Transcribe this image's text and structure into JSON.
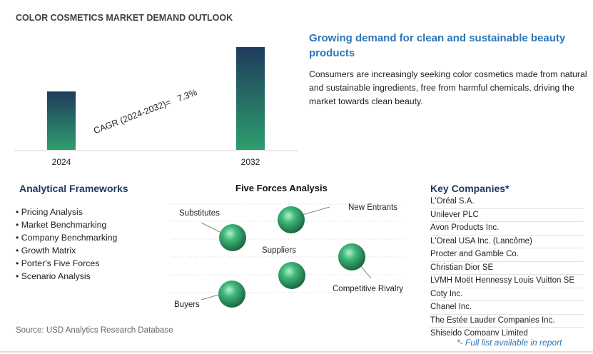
{
  "title": "COLOR COSMETICS MARKET DEMAND OUTLOOK",
  "chart_data": {
    "type": "bar",
    "categories": [
      "2024",
      "2032"
    ],
    "values": [
      100,
      176
    ],
    "annotation": "CAGR (2024-2032)=   7.3%"
  },
  "highlight": {
    "heading": "Growing demand for clean and sustainable beauty products",
    "body": "Consumers are increasingly seeking color cosmetics made from natural and sustainable ingredients, free from harmful chemicals, driving the market towards clean beauty."
  },
  "frameworks": {
    "title": "Analytical Frameworks",
    "items": [
      "Pricing Analysis",
      "Market Benchmarking",
      "Company Benchmarking",
      "Growth Matrix",
      "Porter's Five Forces",
      "Scenario Analysis"
    ]
  },
  "five_forces": {
    "title": "Five Forces Analysis",
    "labels": [
      "Substitutes",
      "New Entrants",
      "Suppliers",
      "Competitive Rivalry",
      "Buyers"
    ]
  },
  "companies": {
    "title": "Key Companies*",
    "items": [
      "L'Oréal S.A.",
      "Unilever PLC",
      "Avon Products Inc.",
      "L'Oreal USA Inc. (Lancôme)",
      "Procter and Gamble Co.",
      "Christian Dior SE",
      "LVMH Moët Hennessy Louis Vuitton SE",
      "Coty Inc.",
      "Chanel Inc.",
      "The Estée Lauder Companies Inc.",
      "Shiseido Company Limited"
    ],
    "note": "*- Full list available in report"
  },
  "source": "Source: USD Analytics Research Database"
}
